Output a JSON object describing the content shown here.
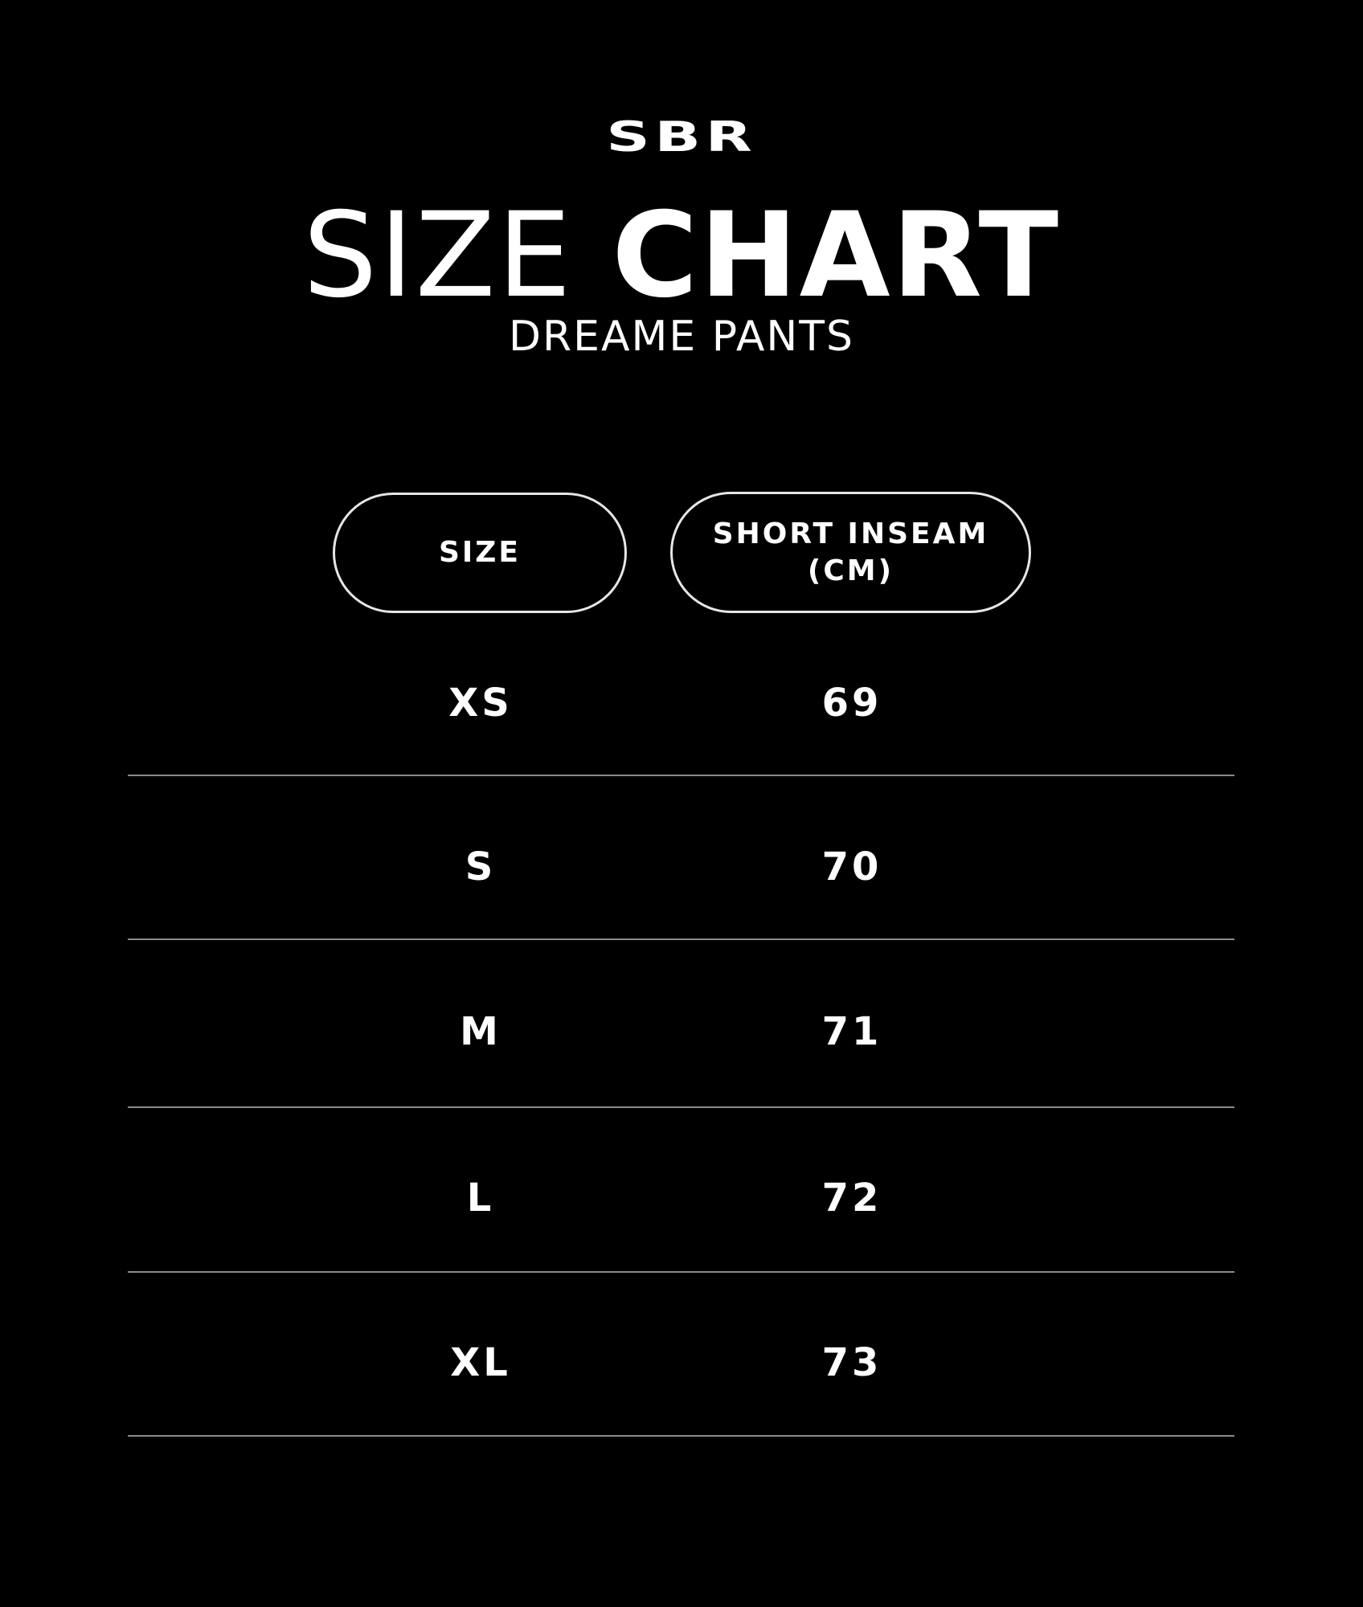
{
  "brand": "SBR",
  "title": {
    "light": "SIZE",
    "bold": "CHART"
  },
  "subtitle": "DREAME PANTS",
  "table": {
    "headers": [
      "SIZE",
      "SHORT INSEAM (CM)"
    ],
    "rows": [
      {
        "size": "XS",
        "inseam": "69"
      },
      {
        "size": "S",
        "inseam": "70"
      },
      {
        "size": "M",
        "inseam": "71"
      },
      {
        "size": "L",
        "inseam": "72"
      },
      {
        "size": "XL",
        "inseam": "73"
      }
    ]
  },
  "colors": {
    "background": "#000000",
    "text": "#ffffff",
    "divider": "#8a8a8a"
  }
}
